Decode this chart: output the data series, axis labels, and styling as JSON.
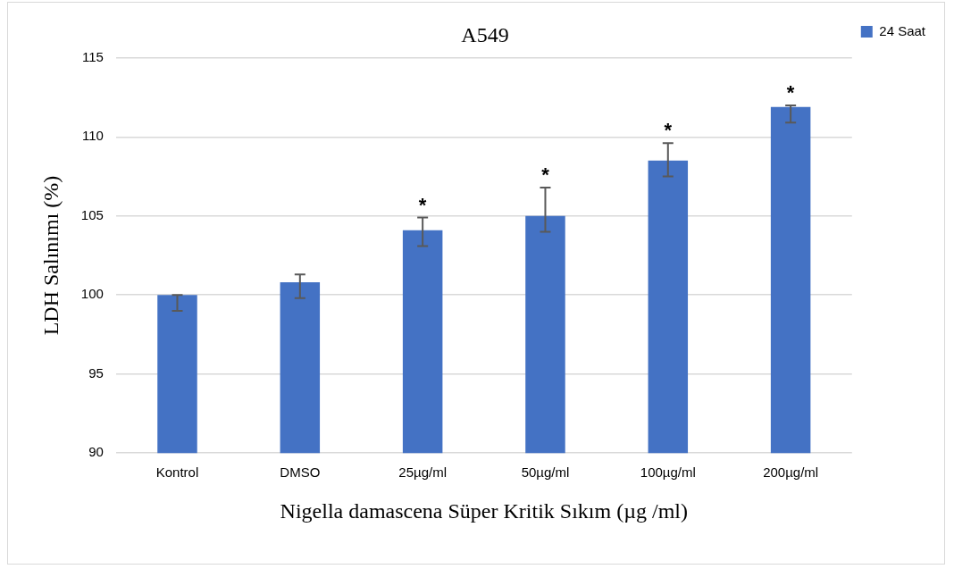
{
  "chart_data": {
    "type": "bar",
    "title": "A549",
    "xlabel": "Nigella damascena Süper Kritik Sıkım (µg /ml)",
    "ylabel": "LDH Salınımı (%)",
    "categories": [
      "Kontrol",
      "DMSO",
      "25µg/ml",
      "50µg/ml",
      "100µg/ml",
      "200µg/ml"
    ],
    "series": [
      {
        "name": "24 Saat",
        "color": "#4472c4",
        "values": [
          100.0,
          100.8,
          104.1,
          105.0,
          108.5,
          111.9
        ],
        "errors": [
          [
            99.0,
            100.0
          ],
          [
            99.8,
            101.3
          ],
          [
            103.1,
            104.9
          ],
          [
            104.0,
            106.8
          ],
          [
            107.5,
            109.6
          ],
          [
            110.9,
            112.0
          ]
        ],
        "value_labels": [
          null,
          null,
          "*",
          "*",
          "*",
          "*"
        ]
      }
    ],
    "ylim": [
      90,
      115
    ],
    "yticks": [
      90,
      95,
      100,
      105,
      110,
      115
    ],
    "grid": "y",
    "legend": "top right"
  }
}
